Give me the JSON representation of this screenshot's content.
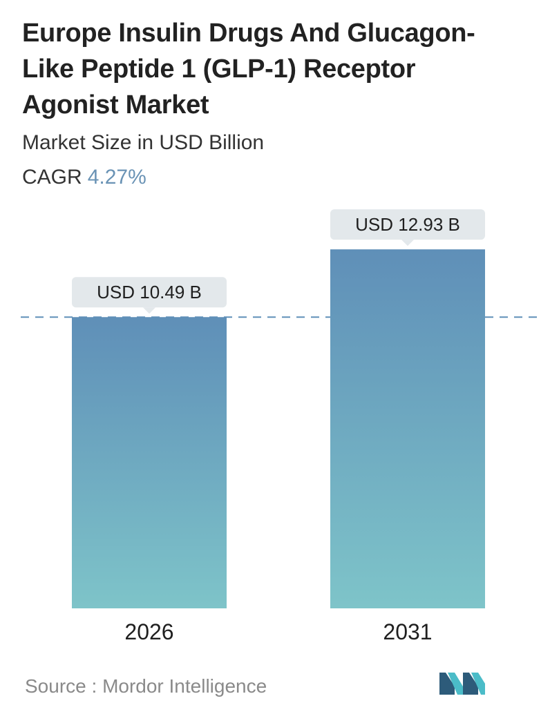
{
  "chart_data": {
    "type": "bar",
    "title": "Europe Insulin Drugs And Glucagon-Like Peptide 1 (GLP-1) Receptor Agonist Market",
    "subtitle": "Market Size in USD Billion",
    "categories": [
      "2026",
      "2031"
    ],
    "values": [
      10.49,
      12.93
    ],
    "data_labels": [
      "USD 10.49 B",
      "USD 12.93 B"
    ],
    "ylim": [
      0,
      14.5
    ],
    "reference_line": 10.49,
    "cagr_label": "CAGR",
    "cagr_value": "4.27%",
    "bar_gradient": [
      "#5f8fb8",
      "#7ec4c9"
    ],
    "label_bg": "#e3e8eb"
  },
  "source": {
    "label": "Source :",
    "name": "Mordor Intelligence"
  },
  "colors": {
    "accent": "#6a93b5",
    "logo_dark": "#2d5b7a",
    "logo_light": "#4bbcc8"
  }
}
